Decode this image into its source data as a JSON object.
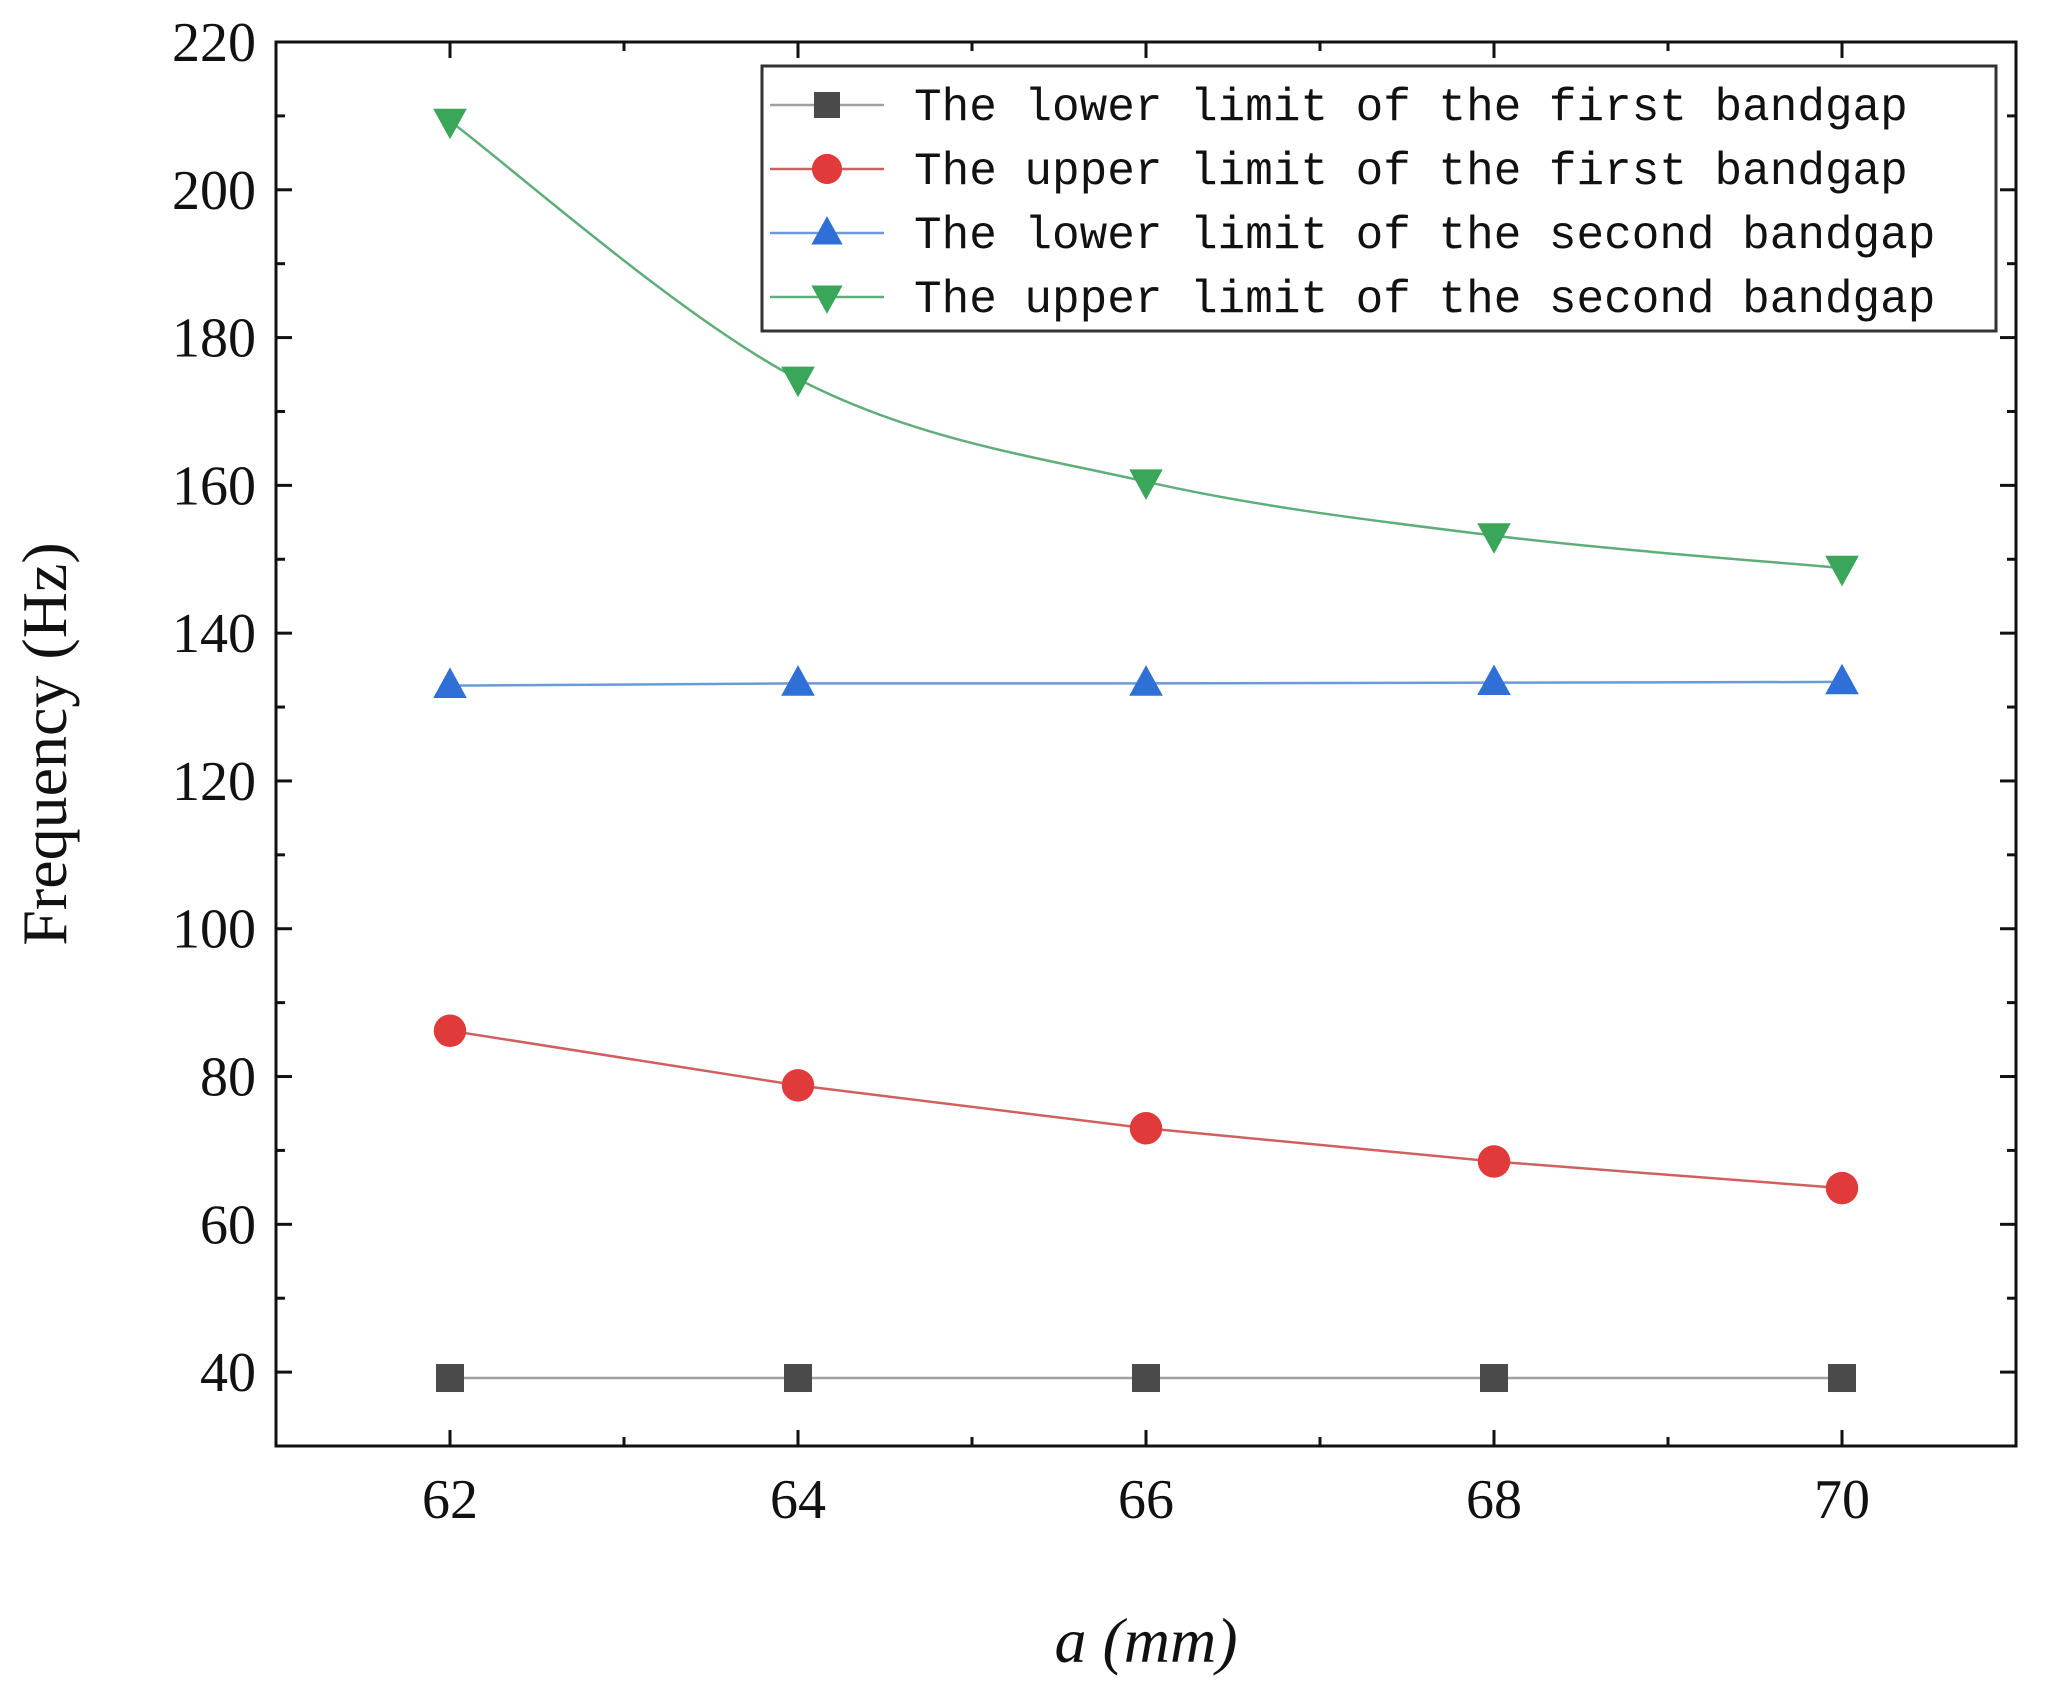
{
  "chart_data": {
    "type": "line",
    "title": "",
    "xlabel": "a (mm)",
    "ylabel": "Frequency (Hz)",
    "x": [
      62,
      64,
      66,
      68,
      70
    ],
    "xlim": [
      61,
      71
    ],
    "ylim": [
      30,
      220
    ],
    "xticks": [
      62,
      64,
      66,
      68,
      70
    ],
    "xtick_labels": [
      "62",
      "64",
      "66",
      "68",
      "70"
    ],
    "yticks": [
      40,
      60,
      80,
      100,
      120,
      140,
      160,
      180,
      200,
      220
    ],
    "ytick_labels": [
      "40",
      "60",
      "80",
      "100",
      "120",
      "140",
      "160",
      "180",
      "200",
      "220"
    ],
    "grid": false,
    "legend_position": "top-right",
    "series": [
      {
        "name": "The lower limit of the first bandgap",
        "marker": "square",
        "color": "#4a4a4a",
        "line_color": "#a0a0a0",
        "values": [
          39.2,
          39.2,
          39.2,
          39.2,
          39.2
        ]
      },
      {
        "name": "The upper limit of the first bandgap",
        "marker": "circle",
        "color": "#e03a3a",
        "line_color": "#d06060",
        "values": [
          86.2,
          78.8,
          73.0,
          68.5,
          64.9
        ]
      },
      {
        "name": "The lower limit of the second bandgap",
        "marker": "triangle-up",
        "color": "#2f6fd6",
        "line_color": "#6a9bd8",
        "values": [
          132.9,
          133.2,
          133.2,
          133.3,
          133.4
        ]
      },
      {
        "name": "The upper limit of the second bandgap",
        "marker": "triangle-down",
        "color": "#3aa65a",
        "line_color": "#5fae7a",
        "values": [
          209.3,
          174.4,
          160.5,
          153.2,
          148.8
        ]
      }
    ]
  }
}
